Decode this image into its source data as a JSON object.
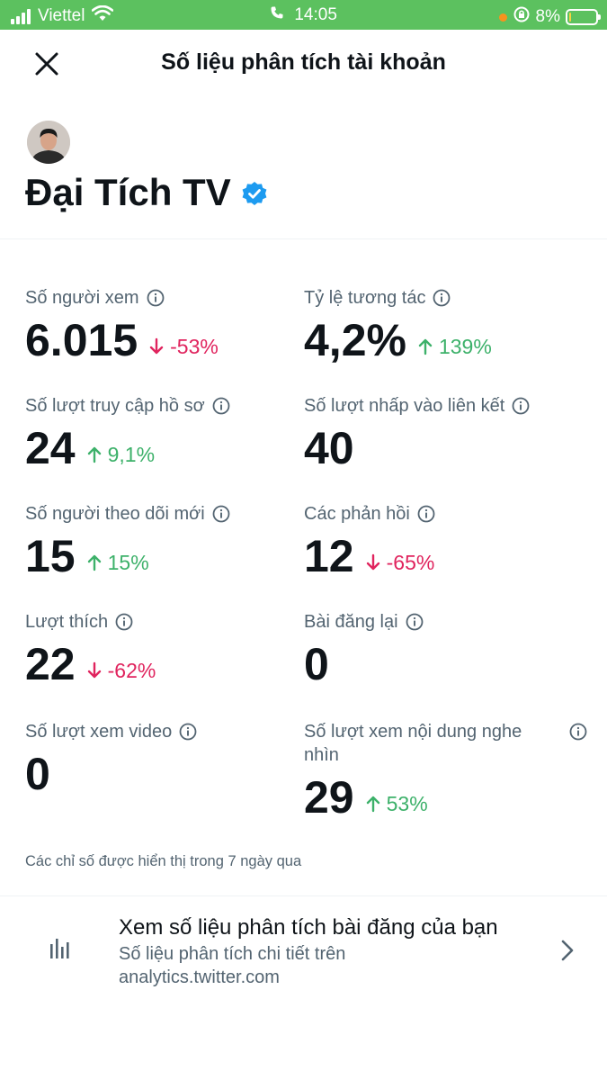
{
  "status_bar": {
    "carrier": "Viettel",
    "time": "14:05",
    "battery": "8%",
    "battery_level": 0.08,
    "bg_color": "#5cc15f"
  },
  "header": {
    "title": "Số liệu phân tích tài khoản",
    "close_icon": "close-icon"
  },
  "profile": {
    "name": "Đại Tích TV",
    "verified": true,
    "verified_color": "#1d9bf0"
  },
  "metrics": [
    {
      "label": "Số người xem",
      "value": "6.015",
      "change": "-53%",
      "direction": "down"
    },
    {
      "label": "Tỷ lệ tương tác",
      "value": "4,2%",
      "change": "139%",
      "direction": "up"
    },
    {
      "label": "Số lượt truy cập hồ sơ",
      "value": "24",
      "change": "9,1%",
      "direction": "up"
    },
    {
      "label": "Số lượt nhấp vào liên kết",
      "value": "40",
      "change": "",
      "direction": ""
    },
    {
      "label": "Số người theo dõi mới",
      "value": "15",
      "change": "15%",
      "direction": "up"
    },
    {
      "label": "Các phản hồi",
      "value": "12",
      "change": "-65%",
      "direction": "down"
    },
    {
      "label": "Lượt thích",
      "value": "22",
      "change": "-62%",
      "direction": "down"
    },
    {
      "label": "Bài đăng lại",
      "value": "0",
      "change": "",
      "direction": ""
    },
    {
      "label": "Số lượt xem video",
      "value": "0",
      "change": "",
      "direction": ""
    },
    {
      "label": "Số lượt xem nội dung nghe nhìn",
      "value": "29",
      "change": "53%",
      "direction": "up"
    }
  ],
  "footnote": "Các chỉ số được hiển thị trong 7 ngày qua",
  "analytics_link": {
    "title": "Xem số liệu phân tích bài đăng của bạn",
    "description": "Số liệu phân tích chi tiết trên analytics.twitter.com",
    "icon": "bar-chart-icon"
  },
  "colors": {
    "up": "#3db16a",
    "down": "#e0245e",
    "muted_text": "#536471"
  }
}
